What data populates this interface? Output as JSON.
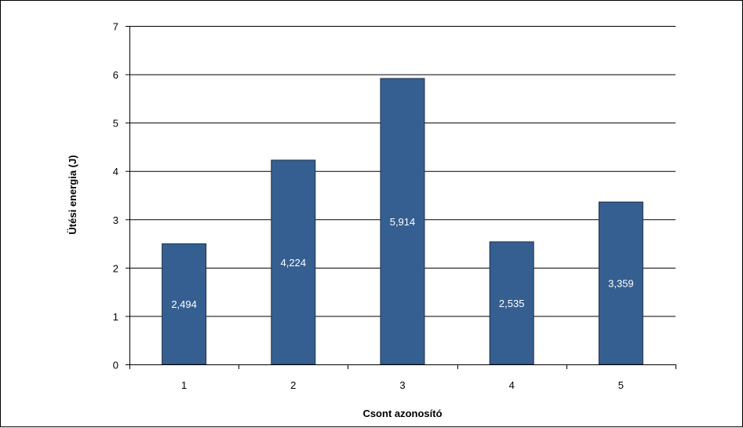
{
  "chart_data": {
    "type": "bar",
    "title": "",
    "xlabel": "Csont azonosító",
    "ylabel": "Ütési energia (J)",
    "categories": [
      "1",
      "2",
      "3",
      "4",
      "5"
    ],
    "series": [
      {
        "values": [
          2.494,
          4.224,
          5.914,
          2.535,
          3.359
        ]
      }
    ],
    "data_labels": [
      "2,494",
      "4,224",
      "5,914",
      "2,535",
      "3,359"
    ],
    "ylim": [
      0,
      7
    ],
    "yticks": [
      "0",
      "1",
      "2",
      "3",
      "4",
      "5",
      "6",
      "7"
    ],
    "grid": true,
    "legend": "none",
    "colors": {
      "bar": "#365f91",
      "bar_border": "#1f2f45",
      "grid": "#000000"
    }
  }
}
